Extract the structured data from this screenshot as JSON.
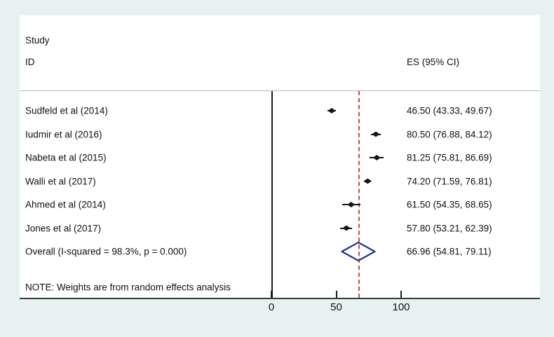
{
  "chart_data": {
    "type": "forest",
    "header": {
      "study_line1": "Study",
      "study_line2": "ID",
      "es_column": "ES (95% CI)"
    },
    "studies": [
      {
        "label": "Sudfeld et al (2014)",
        "es": 46.5,
        "lo": 43.33,
        "hi": 49.67,
        "es_text": "46.50 (43.33, 49.67)"
      },
      {
        "label": "Iudmir et al (2016)",
        "es": 80.5,
        "lo": 76.88,
        "hi": 84.12,
        "es_text": "80.50 (76.88, 84.12)"
      },
      {
        "label": "Nabeta et al (2015)",
        "es": 81.25,
        "lo": 75.81,
        "hi": 86.69,
        "es_text": "81.25 (75.81, 86.69)"
      },
      {
        "label": "Walli et al (2017)",
        "es": 74.2,
        "lo": 71.59,
        "hi": 76.81,
        "es_text": "74.20 (71.59, 76.81)"
      },
      {
        "label": "Ahmed et al (2014)",
        "es": 61.5,
        "lo": 54.35,
        "hi": 68.65,
        "es_text": "61.50 (54.35, 68.65)"
      },
      {
        "label": "Jones et al (2017)",
        "es": 57.8,
        "lo": 53.21,
        "hi": 62.39,
        "es_text": "57.80 (53.21, 62.39)"
      }
    ],
    "overall": {
      "label": "Overall  (I-squared = 98.3%, p = 0.000)",
      "es": 66.96,
      "lo": 54.81,
      "hi": 79.11,
      "es_text": "66.96 (54.81, 79.11)"
    },
    "note": "NOTE: Weights are from random effects analysis",
    "x_axis": {
      "ticks": [
        0,
        50,
        100
      ],
      "grid": false
    },
    "reference_line": {
      "value": 66.96,
      "style": "dashed"
    },
    "zero_line": {
      "value": 0
    },
    "colors": {
      "page_background": "#e8f1f2",
      "plot_background": "#ffffff",
      "reference_line": "#c4504e",
      "overall_diamond": "#2230a0",
      "markers": "#141414",
      "axis": "#1c1c1c"
    }
  }
}
